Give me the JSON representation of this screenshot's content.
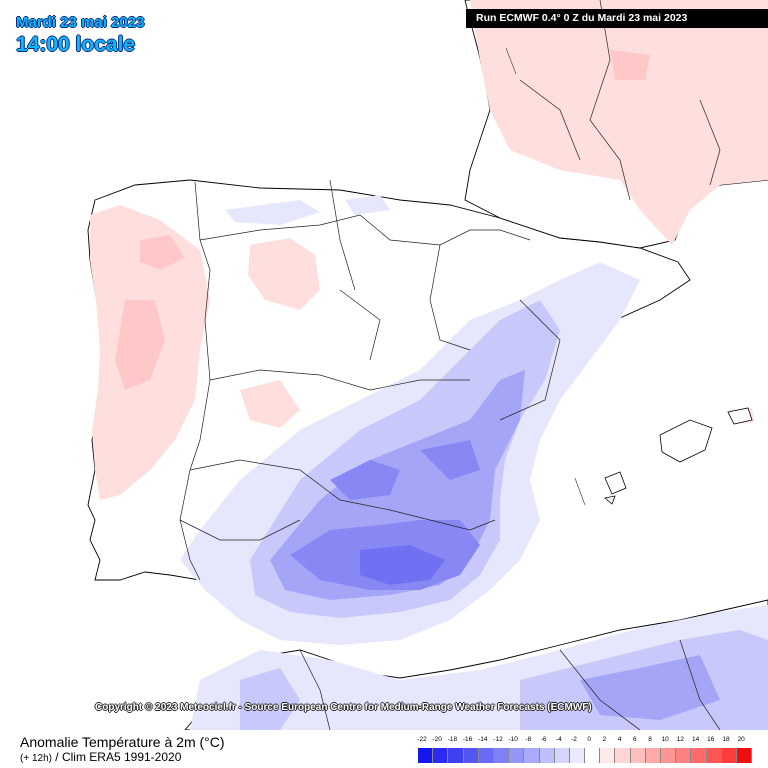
{
  "header": {
    "date": "Mardi 23 mai 2023",
    "time": "14:00 locale",
    "run_info": "Run ECMWF 0.4° 0 Z du Mardi 23 mai 2023"
  },
  "copyright": "Copyright © 2023 Meteociel.fr - Source European Centre for Medium-Range Weather Forecasts (ECMWF)",
  "footer": {
    "title": "Anomalie Température à 2m (°C)",
    "lead_time": "(+ 12h)",
    "clim": "  / Clim ERA5 1991-2020"
  },
  "legend": {
    "labels": [
      "-22",
      "-20",
      "-18",
      "-16",
      "-14",
      "-12",
      "-10",
      "-8",
      "-6",
      "-4",
      "-2",
      "0",
      "2",
      "4",
      "6",
      "8",
      "10",
      "12",
      "14",
      "16",
      "18",
      "20"
    ],
    "colors": [
      "#1515ee",
      "#2a2af0",
      "#4040f2",
      "#5555f4",
      "#6a6af5",
      "#8080f6",
      "#9595f8",
      "#aaaafa",
      "#bfbffb",
      "#d5d5fc",
      "#eaeafe",
      "#ffffff",
      "#ffeaea",
      "#ffd5d5",
      "#ffbfbf",
      "#ffaaaa",
      "#ff9595",
      "#ff8080",
      "#ff6a6a",
      "#ff5555",
      "#ff3b3b",
      "#ee1010"
    ]
  }
}
